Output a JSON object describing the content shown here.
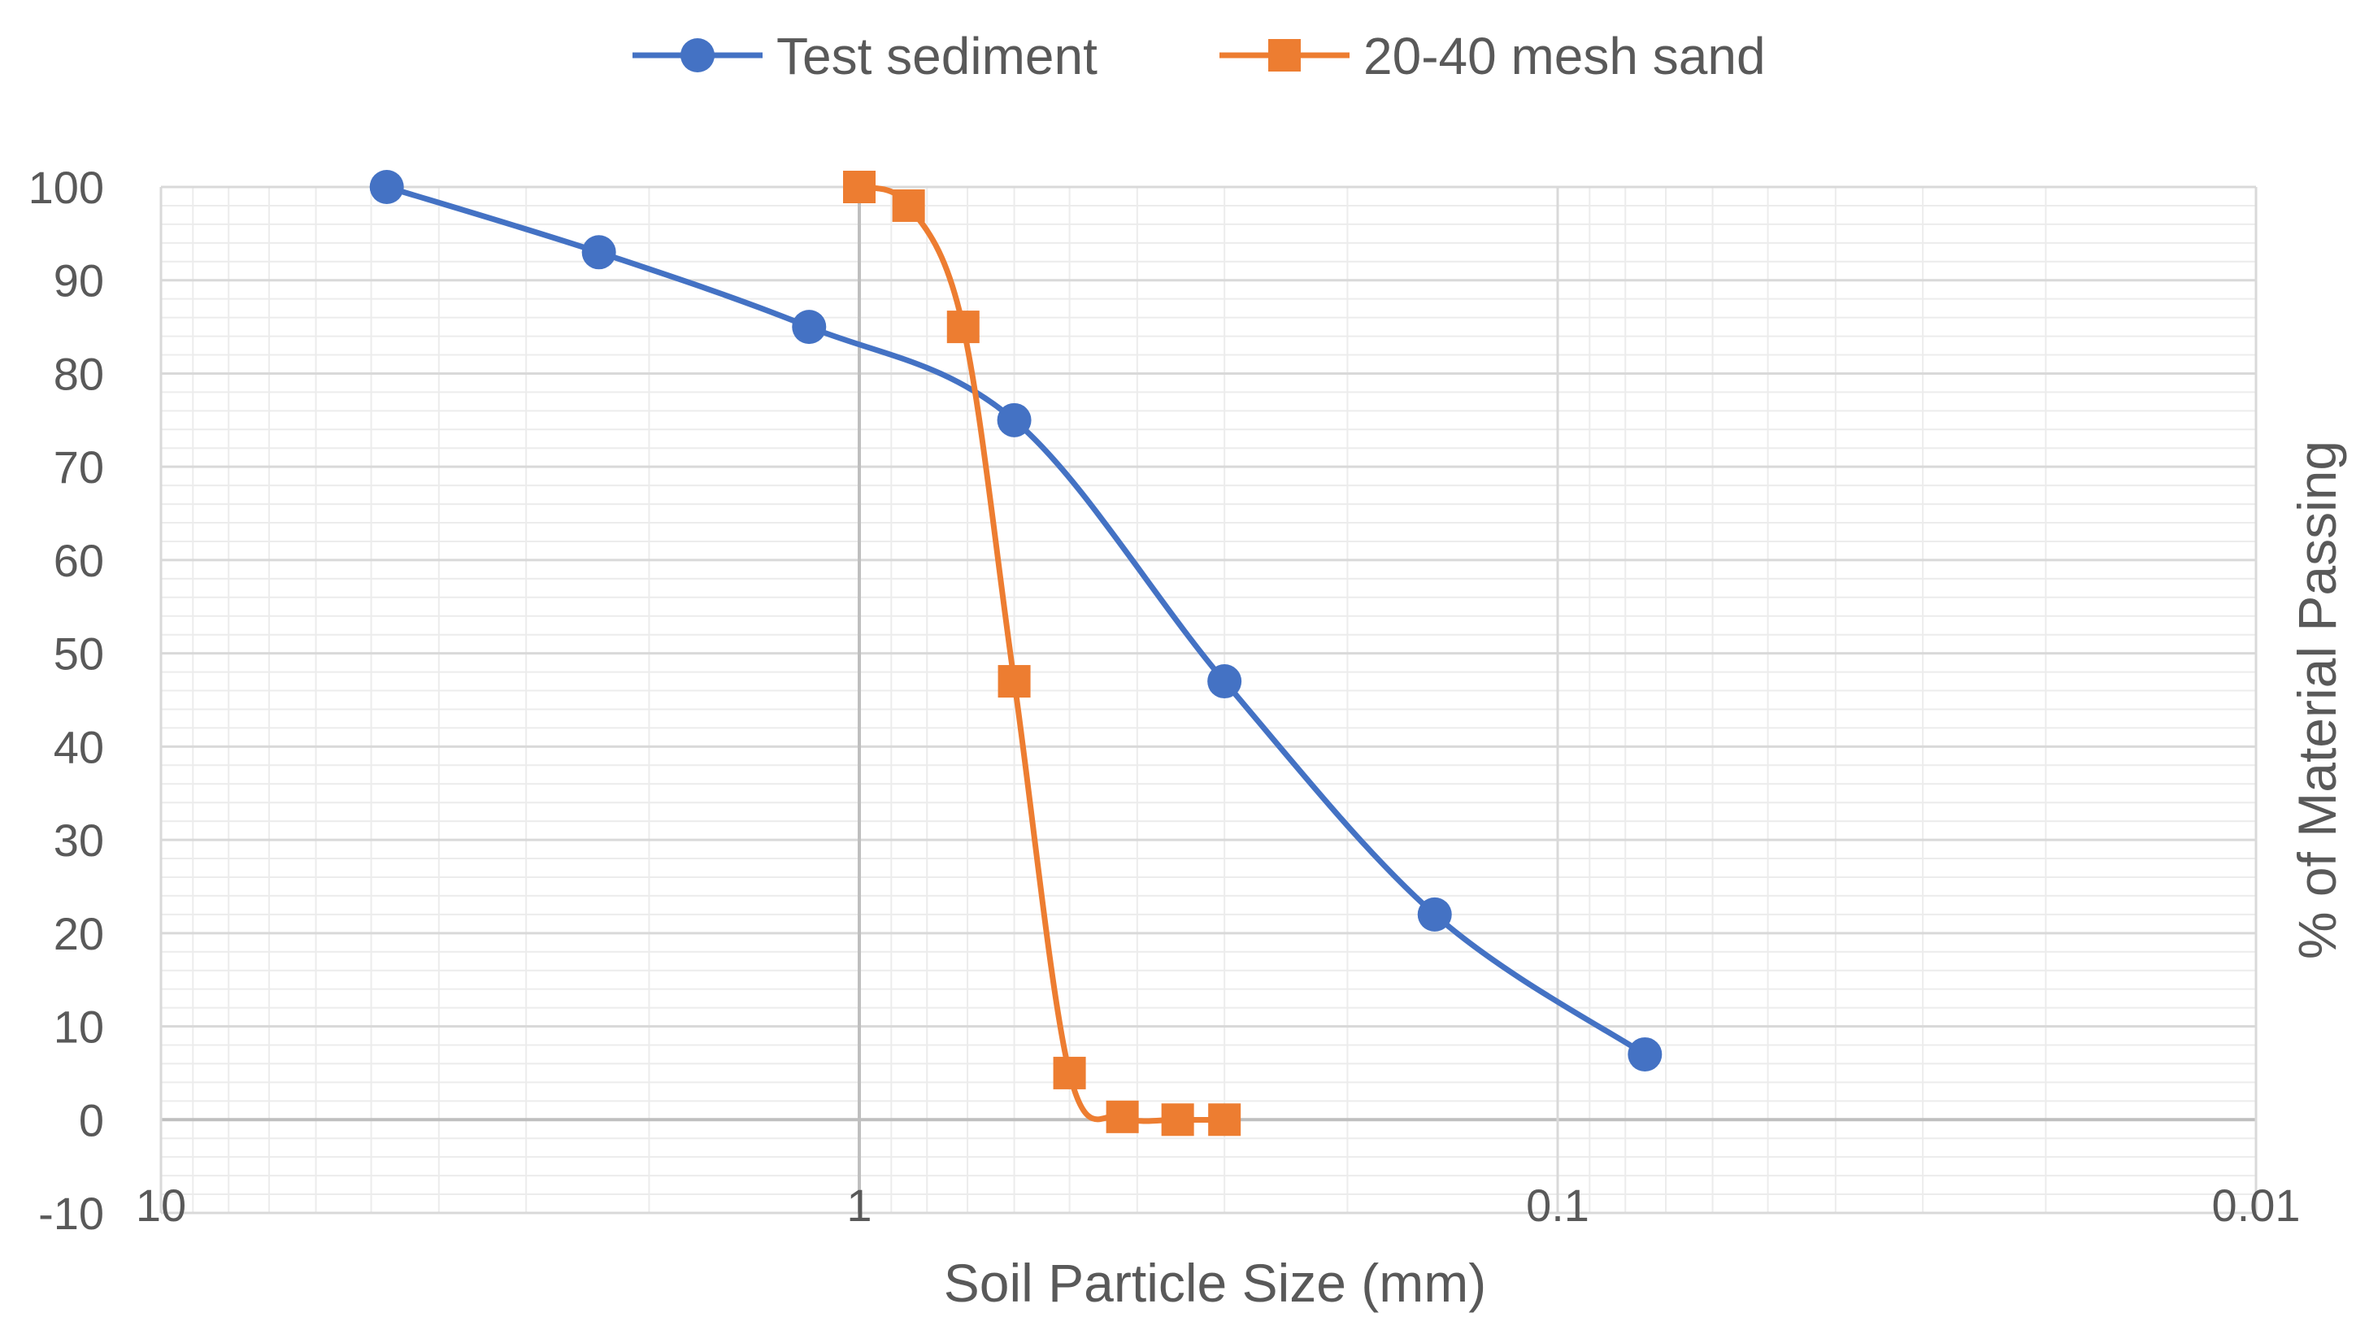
{
  "chart_data": {
    "type": "scatter",
    "title": "",
    "xlabel": "Soil Particle Size (mm)",
    "ylabel": "% of Material Passing",
    "x_scale": "log",
    "x_reversed": true,
    "xlim": [
      10,
      0.01
    ],
    "ylim": [
      -10,
      100
    ],
    "x_ticks": [
      10,
      1,
      0.1,
      0.01
    ],
    "x_tick_labels": [
      "10",
      "1",
      "0.1",
      "0.01"
    ],
    "y_ticks": [
      -10,
      0,
      10,
      20,
      30,
      40,
      50,
      60,
      70,
      80,
      90,
      100
    ],
    "y_tick_labels": [
      "-10",
      "0",
      "10",
      "20",
      "30",
      "40",
      "50",
      "60",
      "70",
      "80",
      "90",
      "100"
    ],
    "grid": true,
    "legend_position": "top",
    "series": [
      {
        "name": "Test sediment",
        "color": "#4472C4",
        "marker": "circle",
        "x": [
          4.75,
          2.36,
          1.18,
          0.6,
          0.3,
          0.15,
          0.075
        ],
        "y": [
          100,
          93,
          85,
          75,
          47,
          22,
          7
        ]
      },
      {
        "name": "20-40 mesh sand",
        "color": "#ED7D31",
        "marker": "square",
        "x": [
          1.0,
          0.85,
          0.71,
          0.6,
          0.5,
          0.42,
          0.35,
          0.3
        ],
        "y": [
          100,
          98,
          85,
          47,
          5,
          0.3,
          0,
          0
        ]
      }
    ]
  }
}
